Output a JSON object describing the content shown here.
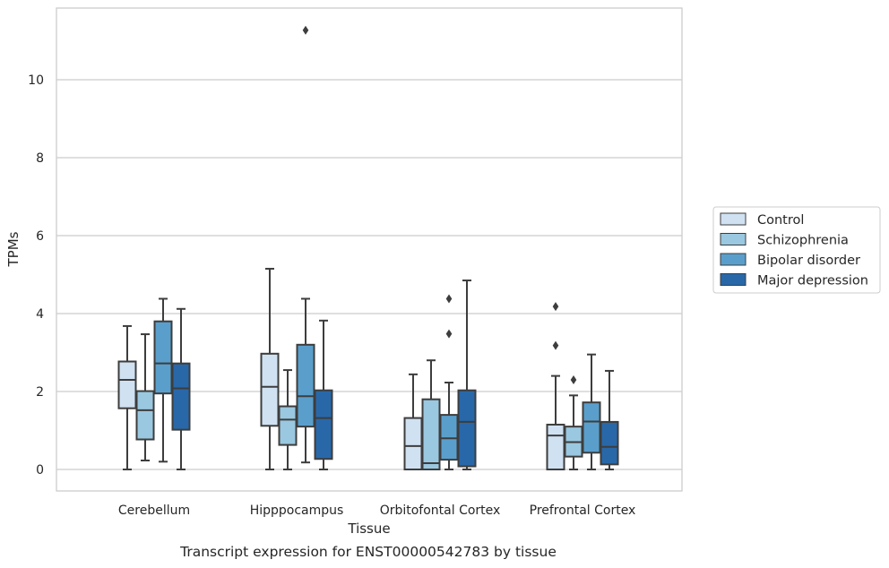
{
  "chart_data": {
    "type": "box",
    "xlabel": "Tissue",
    "ylabel": "TPMs",
    "caption": "Transcript expression for ENST00000542783 by tissue",
    "ylim": [
      -0.55,
      11.75
    ],
    "yticks": [
      0,
      2,
      4,
      6,
      8,
      10
    ],
    "grid": true,
    "legend_position": "right",
    "categories": [
      "Cerebellum",
      "Hipppocampus",
      "Orbitofontal Cortex",
      "Prefrontal Cortex"
    ],
    "series": [
      {
        "name": "Control",
        "color": "#d0e1f2",
        "boxes": [
          {
            "whislo": 0.0,
            "q1": 1.57,
            "med": 2.3,
            "q3": 2.77,
            "whishi": 3.68,
            "fliers": []
          },
          {
            "whislo": 0.0,
            "q1": 1.12,
            "med": 2.12,
            "q3": 2.97,
            "whishi": 5.15,
            "fliers": []
          },
          {
            "whislo": 0.0,
            "q1": 0.0,
            "med": 0.6,
            "q3": 1.32,
            "whishi": 2.44,
            "fliers": []
          },
          {
            "whislo": 0.0,
            "q1": 0.0,
            "med": 0.87,
            "q3": 1.15,
            "whishi": 2.4,
            "fliers": [
              3.18,
              4.18
            ]
          }
        ]
      },
      {
        "name": "Schizophrenia",
        "color": "#9ac8e0",
        "boxes": [
          {
            "whislo": 0.23,
            "q1": 0.77,
            "med": 1.52,
            "q3": 2.01,
            "whishi": 3.47,
            "fliers": []
          },
          {
            "whislo": 0.0,
            "q1": 0.63,
            "med": 1.28,
            "q3": 1.62,
            "whishi": 2.55,
            "fliers": []
          },
          {
            "whislo": 0.0,
            "q1": 0.0,
            "med": 0.16,
            "q3": 1.8,
            "whishi": 2.8,
            "fliers": []
          },
          {
            "whislo": 0.0,
            "q1": 0.33,
            "med": 0.7,
            "q3": 1.1,
            "whishi": 1.9,
            "fliers": [
              2.3
            ]
          }
        ]
      },
      {
        "name": "Bipolar disorder",
        "color": "#5a9fcc",
        "boxes": [
          {
            "whislo": 0.2,
            "q1": 1.95,
            "med": 2.72,
            "q3": 3.8,
            "whishi": 4.38,
            "fliers": []
          },
          {
            "whislo": 0.18,
            "q1": 1.1,
            "med": 1.88,
            "q3": 3.2,
            "whishi": 4.38,
            "fliers": [
              11.27
            ]
          },
          {
            "whislo": 0.0,
            "q1": 0.25,
            "med": 0.8,
            "q3": 1.4,
            "whishi": 2.23,
            "fliers": [
              3.48,
              4.38
            ]
          },
          {
            "whislo": 0.0,
            "q1": 0.43,
            "med": 1.23,
            "q3": 1.72,
            "whishi": 2.95,
            "fliers": []
          }
        ]
      },
      {
        "name": "Major depression",
        "color": "#2868a9",
        "boxes": [
          {
            "whislo": 0.0,
            "q1": 1.02,
            "med": 2.08,
            "q3": 2.72,
            "whishi": 4.12,
            "fliers": []
          },
          {
            "whislo": 0.0,
            "q1": 0.27,
            "med": 1.32,
            "q3": 2.03,
            "whishi": 3.82,
            "fliers": []
          },
          {
            "whislo": 0.0,
            "q1": 0.08,
            "med": 1.22,
            "q3": 2.03,
            "whishi": 4.85,
            "fliers": []
          },
          {
            "whislo": 0.0,
            "q1": 0.13,
            "med": 0.58,
            "q3": 1.22,
            "whishi": 2.53,
            "fliers": []
          }
        ]
      }
    ]
  }
}
